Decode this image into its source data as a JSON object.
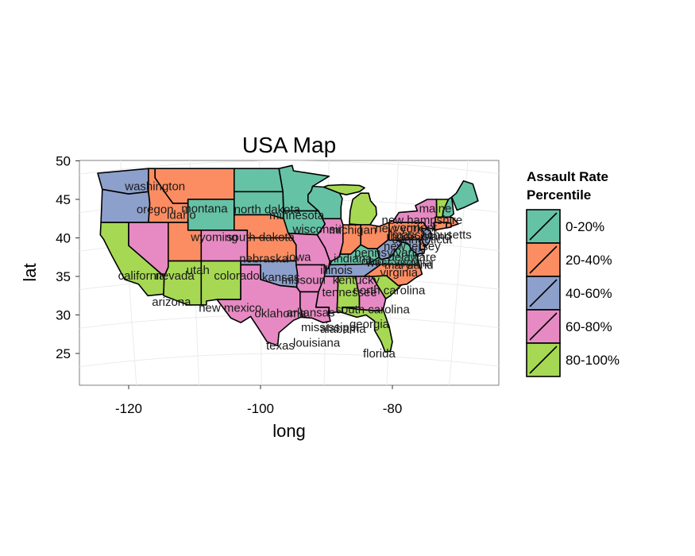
{
  "chart_data": {
    "type": "map",
    "title": "USA Map",
    "xlabel": "long",
    "ylabel": "lat",
    "xlim": [
      -127,
      -63
    ],
    "ylim": [
      21,
      51
    ],
    "x_ticks": [
      -120,
      -100,
      -80
    ],
    "y_ticks": [
      25,
      30,
      35,
      40,
      45,
      50
    ],
    "x_tick_labels": [
      "-120",
      "-100",
      "-80"
    ],
    "y_tick_labels": [
      "25",
      "30",
      "35",
      "40",
      "45",
      "50"
    ],
    "grid": true,
    "projection": "curved graticule",
    "legend": {
      "title_lines": [
        "Assault Rate",
        "Percentile"
      ],
      "position": "right",
      "classes": [
        {
          "label": "0-20%",
          "color": "#66c2a5"
        },
        {
          "label": "20-40%",
          "color": "#fc8d62"
        },
        {
          "label": "40-60%",
          "color": "#8da0cb"
        },
        {
          "label": "60-80%",
          "color": "#e78ac3"
        },
        {
          "label": "80-100%",
          "color": "#a6d854"
        }
      ]
    },
    "states": [
      {
        "name": "washington",
        "class": 2,
        "label_lon": -116,
        "label_lat": 46.2
      },
      {
        "name": "oregon",
        "class": 2,
        "label_lon": -116,
        "label_lat": 43.2
      },
      {
        "name": "idaho",
        "class": 1,
        "label_lon": -112,
        "label_lat": 42.5
      },
      {
        "name": "montana",
        "class": 1,
        "label_lon": -108.5,
        "label_lat": 43.3
      },
      {
        "name": "california",
        "class": 4,
        "label_lon": -118,
        "label_lat": 34.6
      },
      {
        "name": "nevada",
        "class": 3,
        "label_lon": -113,
        "label_lat": 34.6
      },
      {
        "name": "utah",
        "class": 1,
        "label_lon": -109.5,
        "label_lat": 35.3
      },
      {
        "name": "arizona",
        "class": 4,
        "label_lon": -113.5,
        "label_lat": 31.2
      },
      {
        "name": "wyoming",
        "class": 0,
        "label_lon": -107,
        "label_lat": 39.6
      },
      {
        "name": "colorado",
        "class": 3,
        "label_lon": -103.6,
        "label_lat": 34.6
      },
      {
        "name": "new mexico",
        "class": 4,
        "label_lon": -104.6,
        "label_lat": 30.4
      },
      {
        "name": "north dakota",
        "class": 0,
        "label_lon": -99,
        "label_lat": 43.2
      },
      {
        "name": "south dakota",
        "class": 0,
        "label_lon": -100,
        "label_lat": 39.6
      },
      {
        "name": "nebraska",
        "class": 1,
        "label_lon": -99.5,
        "label_lat": 36.8
      },
      {
        "name": "kansas",
        "class": 1,
        "label_lon": -96.9,
        "label_lat": 34.4
      },
      {
        "name": "oklahoma",
        "class": 2,
        "label_lon": -97,
        "label_lat": 29.7
      },
      {
        "name": "texas",
        "class": 3,
        "label_lon": -97,
        "label_lat": 25.5
      },
      {
        "name": "minnesota",
        "class": 0,
        "label_lon": -94.5,
        "label_lat": 42.4
      },
      {
        "name": "iowa",
        "class": 0,
        "label_lon": -94.2,
        "label_lat": 37.0
      },
      {
        "name": "missouri",
        "class": 3,
        "label_lon": -93.5,
        "label_lat": 34.0
      },
      {
        "name": "arkansas",
        "class": 3,
        "label_lon": -92.4,
        "label_lat": 29.8
      },
      {
        "name": "louisiana",
        "class": 3,
        "label_lon": -91.5,
        "label_lat": 25.9
      },
      {
        "name": "wisconsin",
        "class": 0,
        "label_lon": -91.2,
        "label_lat": 40.6
      },
      {
        "name": "michigan",
        "class": 4,
        "label_lon": -86,
        "label_lat": 40.5
      },
      {
        "name": "illinois",
        "class": 3,
        "label_lon": -88.5,
        "label_lat": 35.3
      },
      {
        "name": "indiana",
        "class": 1,
        "label_lon": -86,
        "label_lat": 36.8
      },
      {
        "name": "ohio",
        "class": 1,
        "label_lon": -83,
        "label_lat": 36.5
      },
      {
        "name": "kentucky",
        "class": 0,
        "label_lon": -85.5,
        "label_lat": 34.0
      },
      {
        "name": "tennessee",
        "class": 2,
        "label_lon": -86.5,
        "label_lat": 32.4
      },
      {
        "name": "mississippi",
        "class": 3,
        "label_lon": -89.5,
        "label_lat": 27.9
      },
      {
        "name": "alabama",
        "class": 4,
        "label_lon": -87.5,
        "label_lat": 27.7
      },
      {
        "name": "georgia",
        "class": 3,
        "label_lon": -83.5,
        "label_lat": 28.3
      },
      {
        "name": "florida",
        "class": 4,
        "label_lon": -82,
        "label_lat": 24.5
      },
      {
        "name": "south carolina",
        "class": 4,
        "label_lon": -83,
        "label_lat": 30.2
      },
      {
        "name": "north carolina",
        "class": 1,
        "label_lon": -80.5,
        "label_lat": 32.7
      },
      {
        "name": "virginia",
        "class": 0,
        "label_lon": -79,
        "label_lat": 35.0
      },
      {
        "name": "west virginia",
        "class": 2,
        "label_lon": -79,
        "label_lat": 36.3
      },
      {
        "name": "pennsylvania",
        "class": 1,
        "label_lon": -80.5,
        "label_lat": 37.6
      },
      {
        "name": "new york",
        "class": 3,
        "label_lon": -79,
        "label_lat": 40.7
      },
      {
        "name": "maine",
        "class": 0,
        "label_lon": -73.5,
        "label_lat": 43.3
      },
      {
        "name": "new hampshire",
        "class": 0,
        "label_lon": -75.5,
        "label_lat": 41.8
      },
      {
        "name": "vermont",
        "class": 4,
        "label_lon": -76.5,
        "label_lat": 40.8
      },
      {
        "name": "massachusetts",
        "class": 1,
        "label_lon": -74,
        "label_lat": 39.9
      },
      {
        "name": "connecticut",
        "class": 1,
        "label_lon": -75.5,
        "label_lat": 39.3
      },
      {
        "name": "rhode island",
        "class": 1,
        "label_lon": -76,
        "label_lat": 39.7
      },
      {
        "name": "new jersey",
        "class": 2,
        "label_lon": -77,
        "label_lat": 38.4
      },
      {
        "name": "delaware",
        "class": 1,
        "label_lon": -77,
        "label_lat": 37.0
      },
      {
        "name": "maryland",
        "class": 2,
        "label_lon": -77.5,
        "label_lat": 36.0
      }
    ]
  }
}
